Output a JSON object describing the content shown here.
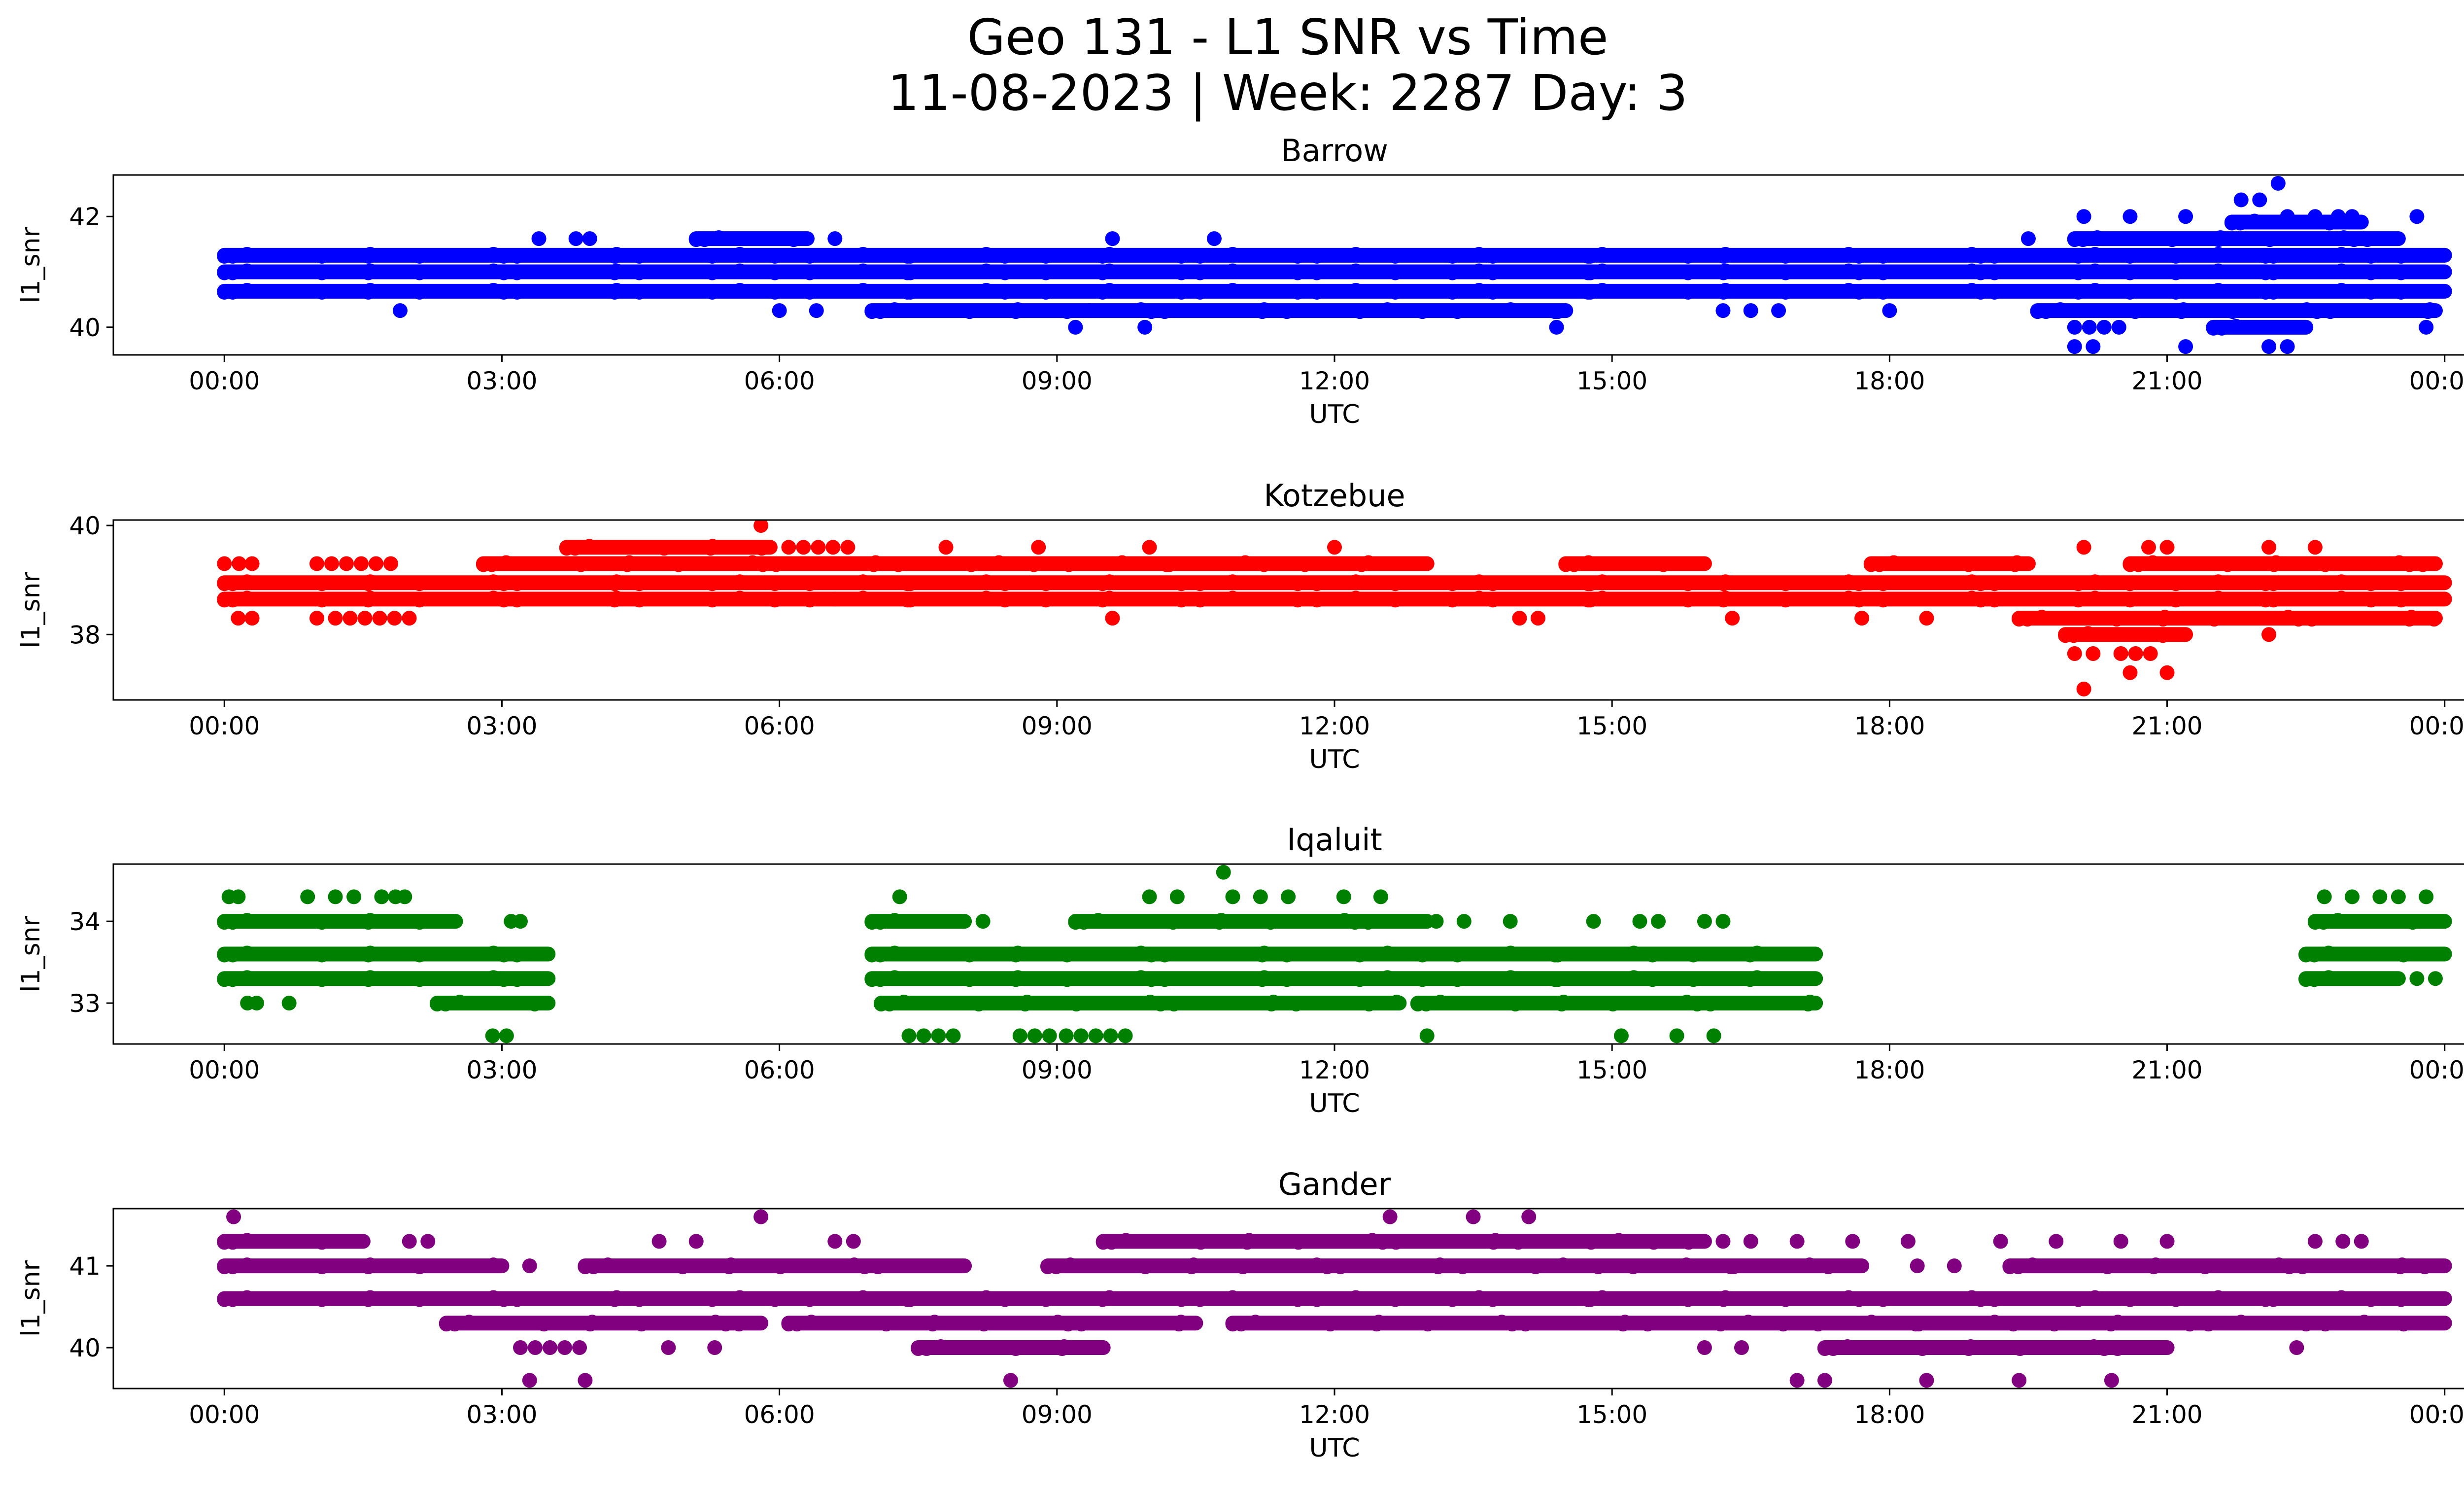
{
  "figure": {
    "title_line1": "Geo 131 - L1 SNR vs Time",
    "title_line2": "11-08-2023 | Week: 2287 Day: 3"
  },
  "chart_data": [
    {
      "type": "scatter",
      "title": "Barrow",
      "xlabel": "UTC",
      "ylabel": "l1_snr",
      "color": "#0000ff",
      "x_ticks": [
        "00:00",
        "03:00",
        "06:00",
        "09:00",
        "12:00",
        "15:00",
        "18:00",
        "21:00",
        "00:00"
      ],
      "xlim_hours": [
        -1.2,
        25.2
      ],
      "y_ticks": [
        40,
        42
      ],
      "ylim": [
        39.5,
        42.75
      ],
      "bands": [
        {
          "y": 40.65,
          "segments": [
            [
              0,
              24
            ]
          ]
        },
        {
          "y": 41.0,
          "segments": [
            [
              0,
              24
            ]
          ]
        },
        {
          "y": 41.3,
          "segments": [
            [
              0,
              24
            ]
          ]
        },
        {
          "y": 41.6,
          "segments": [
            [
              5.1,
              6.3
            ],
            [
              20.0,
              23.5
            ]
          ]
        },
        {
          "y": 41.9,
          "segments": [
            [
              21.7,
              23.1
            ]
          ]
        },
        {
          "y": 40.3,
          "segments": [
            [
              7.0,
              14.5
            ],
            [
              19.6,
              23.9
            ]
          ]
        },
        {
          "y": 40.0,
          "segments": [
            [
              20.0,
              20.6
            ],
            [
              21.5,
              22.5
            ]
          ]
        }
      ],
      "points": [
        {
          "x": 1.9,
          "y": 40.3
        },
        {
          "x": 3.4,
          "y": 41.6
        },
        {
          "x": 3.8,
          "y": 41.6
        },
        {
          "x": 3.95,
          "y": 41.6
        },
        {
          "x": 6.0,
          "y": 40.3
        },
        {
          "x": 6.4,
          "y": 40.3
        },
        {
          "x": 6.6,
          "y": 41.6
        },
        {
          "x": 8.6,
          "y": 40.3
        },
        {
          "x": 9.2,
          "y": 40.0
        },
        {
          "x": 9.35,
          "y": 40.3
        },
        {
          "x": 9.6,
          "y": 41.6
        },
        {
          "x": 9.95,
          "y": 40.0
        },
        {
          "x": 10.7,
          "y": 41.6
        },
        {
          "x": 14.4,
          "y": 40.0
        },
        {
          "x": 16.2,
          "y": 40.3
        },
        {
          "x": 16.5,
          "y": 40.3
        },
        {
          "x": 16.8,
          "y": 40.3
        },
        {
          "x": 18.0,
          "y": 40.3
        },
        {
          "x": 19.5,
          "y": 41.6
        },
        {
          "x": 20.1,
          "y": 42.0
        },
        {
          "x": 20.6,
          "y": 42.0
        },
        {
          "x": 21.2,
          "y": 42.0
        },
        {
          "x": 21.8,
          "y": 42.3
        },
        {
          "x": 22.0,
          "y": 42.3
        },
        {
          "x": 22.2,
          "y": 42.6
        },
        {
          "x": 22.3,
          "y": 42.0
        },
        {
          "x": 22.6,
          "y": 42.0
        },
        {
          "x": 22.85,
          "y": 42.0
        },
        {
          "x": 23.0,
          "y": 42.0
        },
        {
          "x": 23.7,
          "y": 42.0
        },
        {
          "x": 23.8,
          "y": 40.0
        },
        {
          "x": 20.0,
          "y": 39.65
        },
        {
          "x": 20.2,
          "y": 39.65
        },
        {
          "x": 21.2,
          "y": 39.65
        },
        {
          "x": 22.1,
          "y": 39.65
        },
        {
          "x": 22.3,
          "y": 39.65
        }
      ]
    },
    {
      "type": "scatter",
      "title": "Kotzebue",
      "xlabel": "UTC",
      "ylabel": "l1_snr",
      "color": "#ff0000",
      "x_ticks": [
        "00:00",
        "03:00",
        "06:00",
        "09:00",
        "12:00",
        "15:00",
        "18:00",
        "21:00",
        "00:00"
      ],
      "xlim_hours": [
        -1.2,
        25.2
      ],
      "y_ticks": [
        38,
        40
      ],
      "ylim": [
        36.8,
        40.1
      ],
      "bands": [
        {
          "y": 38.65,
          "segments": [
            [
              0,
              24
            ]
          ]
        },
        {
          "y": 38.95,
          "segments": [
            [
              0,
              24
            ]
          ]
        },
        {
          "y": 39.3,
          "segments": [
            [
              0,
              0.2
            ],
            [
              1.0,
              1.9
            ],
            [
              2.8,
              13.0
            ],
            [
              14.5,
              16.0
            ],
            [
              17.8,
              19.5
            ],
            [
              20.6,
              23.9
            ]
          ]
        },
        {
          "y": 39.6,
          "segments": [
            [
              3.7,
              5.9
            ],
            [
              6.1,
              6.8
            ]
          ]
        },
        {
          "y": 38.3,
          "segments": [
            [
              1.2,
              2.0
            ],
            [
              19.4,
              23.9
            ]
          ]
        },
        {
          "y": 38.0,
          "segments": [
            [
              19.9,
              21.2
            ]
          ]
        },
        {
          "y": 37.65,
          "segments": [
            [
              20.5,
              20.9
            ]
          ]
        }
      ],
      "points": [
        {
          "x": 0.3,
          "y": 39.3
        },
        {
          "x": 0.15,
          "y": 38.3
        },
        {
          "x": 0.3,
          "y": 38.3
        },
        {
          "x": 1.0,
          "y": 38.3
        },
        {
          "x": 5.8,
          "y": 40.0
        },
        {
          "x": 6.6,
          "y": 38.65
        },
        {
          "x": 7.8,
          "y": 39.6
        },
        {
          "x": 8.8,
          "y": 39.6
        },
        {
          "x": 9.6,
          "y": 38.3
        },
        {
          "x": 10.0,
          "y": 39.6
        },
        {
          "x": 12.0,
          "y": 39.6
        },
        {
          "x": 14.0,
          "y": 38.3
        },
        {
          "x": 14.2,
          "y": 38.3
        },
        {
          "x": 16.3,
          "y": 38.3
        },
        {
          "x": 17.7,
          "y": 38.3
        },
        {
          "x": 18.4,
          "y": 38.3
        },
        {
          "x": 20.1,
          "y": 39.6
        },
        {
          "x": 20.8,
          "y": 39.6
        },
        {
          "x": 21.0,
          "y": 39.6
        },
        {
          "x": 22.1,
          "y": 39.6
        },
        {
          "x": 22.6,
          "y": 39.6
        },
        {
          "x": 20.0,
          "y": 37.65
        },
        {
          "x": 20.2,
          "y": 37.65
        },
        {
          "x": 20.6,
          "y": 37.3
        },
        {
          "x": 21.0,
          "y": 37.3
        },
        {
          "x": 20.1,
          "y": 37.0
        },
        {
          "x": 22.1,
          "y": 38.0
        }
      ]
    },
    {
      "type": "scatter",
      "title": "Iqaluit",
      "xlabel": "UTC",
      "ylabel": "l1_snr",
      "color": "#008000",
      "x_ticks": [
        "00:00",
        "03:00",
        "06:00",
        "09:00",
        "12:00",
        "15:00",
        "18:00",
        "21:00",
        "00:00"
      ],
      "xlim_hours": [
        -1.2,
        25.2
      ],
      "y_ticks": [
        33,
        34
      ],
      "ylim": [
        32.5,
        34.7
      ],
      "bands": [
        {
          "y": 34.0,
          "segments": [
            [
              0,
              2.5
            ],
            [
              7.0,
              8.0
            ],
            [
              9.2,
              13.0
            ],
            [
              22.6,
              24
            ]
          ]
        },
        {
          "y": 33.6,
          "segments": [
            [
              0,
              3.5
            ],
            [
              7.0,
              17.2
            ],
            [
              22.5,
              24
            ]
          ]
        },
        {
          "y": 33.3,
          "segments": [
            [
              0,
              3.5
            ],
            [
              7.0,
              17.2
            ],
            [
              22.5,
              23.5
            ]
          ]
        },
        {
          "y": 33.0,
          "segments": [
            [
              2.3,
              3.5
            ],
            [
              7.1,
              12.7
            ],
            [
              12.9,
              17.2
            ]
          ]
        },
        {
          "y": 32.6,
          "segments": [
            [
              7.4,
              8.0
            ],
            [
              8.6,
              9.0
            ],
            [
              9.1,
              9.8
            ]
          ]
        }
      ],
      "points": [
        {
          "x": 0.05,
          "y": 34.3
        },
        {
          "x": 0.15,
          "y": 34.3
        },
        {
          "x": 0.9,
          "y": 34.3
        },
        {
          "x": 1.2,
          "y": 34.3
        },
        {
          "x": 1.4,
          "y": 34.3
        },
        {
          "x": 1.7,
          "y": 34.3
        },
        {
          "x": 1.85,
          "y": 34.3
        },
        {
          "x": 1.95,
          "y": 34.3
        },
        {
          "x": 0.7,
          "y": 33.0
        },
        {
          "x": 0.25,
          "y": 33.0
        },
        {
          "x": 0.35,
          "y": 33.0
        },
        {
          "x": 2.9,
          "y": 32.6
        },
        {
          "x": 3.05,
          "y": 32.6
        },
        {
          "x": 3.1,
          "y": 34.0
        },
        {
          "x": 3.2,
          "y": 34.0
        },
        {
          "x": 7.3,
          "y": 34.3
        },
        {
          "x": 8.2,
          "y": 34.0
        },
        {
          "x": 10.0,
          "y": 34.3
        },
        {
          "x": 10.3,
          "y": 34.3
        },
        {
          "x": 10.8,
          "y": 34.6
        },
        {
          "x": 10.9,
          "y": 34.3
        },
        {
          "x": 11.2,
          "y": 34.3
        },
        {
          "x": 11.5,
          "y": 34.3
        },
        {
          "x": 12.1,
          "y": 34.3
        },
        {
          "x": 12.5,
          "y": 34.3
        },
        {
          "x": 13.1,
          "y": 34.0
        },
        {
          "x": 13.4,
          "y": 34.0
        },
        {
          "x": 13.9,
          "y": 34.0
        },
        {
          "x": 14.8,
          "y": 34.0
        },
        {
          "x": 15.3,
          "y": 34.0
        },
        {
          "x": 15.5,
          "y": 34.0
        },
        {
          "x": 16.0,
          "y": 34.0
        },
        {
          "x": 16.2,
          "y": 34.0
        },
        {
          "x": 13.0,
          "y": 32.6
        },
        {
          "x": 15.1,
          "y": 32.6
        },
        {
          "x": 15.7,
          "y": 32.6
        },
        {
          "x": 16.1,
          "y": 32.6
        },
        {
          "x": 22.7,
          "y": 34.3
        },
        {
          "x": 23.0,
          "y": 34.3
        },
        {
          "x": 23.3,
          "y": 34.3
        },
        {
          "x": 23.5,
          "y": 34.3
        },
        {
          "x": 23.8,
          "y": 34.3
        },
        {
          "x": 23.7,
          "y": 33.3
        },
        {
          "x": 23.9,
          "y": 33.3
        }
      ]
    },
    {
      "type": "scatter",
      "title": "Gander",
      "xlabel": "UTC",
      "ylabel": "l1_snr",
      "color": "#800080",
      "x_ticks": [
        "00:00",
        "03:00",
        "06:00",
        "09:00",
        "12:00",
        "15:00",
        "18:00",
        "21:00",
        "00:00"
      ],
      "xlim_hours": [
        -1.2,
        25.2
      ],
      "y_ticks": [
        40,
        41
      ],
      "ylim": [
        39.5,
        41.7
      ],
      "bands": [
        {
          "y": 41.3,
          "segments": [
            [
              0,
              1.5
            ],
            [
              9.5,
              16.0
            ]
          ]
        },
        {
          "y": 41.0,
          "segments": [
            [
              0,
              3.0
            ],
            [
              3.9,
              8.0
            ],
            [
              8.9,
              17.7
            ],
            [
              19.3,
              24
            ]
          ]
        },
        {
          "y": 40.6,
          "segments": [
            [
              0,
              24
            ]
          ]
        },
        {
          "y": 40.3,
          "segments": [
            [
              2.4,
              5.8
            ],
            [
              6.1,
              10.5
            ],
            [
              10.9,
              24
            ]
          ]
        },
        {
          "y": 40.0,
          "segments": [
            [
              3.2,
              3.9
            ],
            [
              7.5,
              9.5
            ],
            [
              17.3,
              21.0
            ]
          ]
        }
      ],
      "points": [
        {
          "x": 0.1,
          "y": 41.6
        },
        {
          "x": 5.8,
          "y": 41.6
        },
        {
          "x": 12.6,
          "y": 41.6
        },
        {
          "x": 13.5,
          "y": 41.6
        },
        {
          "x": 14.1,
          "y": 41.6
        },
        {
          "x": 3.3,
          "y": 39.6
        },
        {
          "x": 3.9,
          "y": 39.6
        },
        {
          "x": 8.5,
          "y": 39.6
        },
        {
          "x": 17.0,
          "y": 39.6
        },
        {
          "x": 17.3,
          "y": 39.6
        },
        {
          "x": 18.4,
          "y": 39.6
        },
        {
          "x": 19.4,
          "y": 39.6
        },
        {
          "x": 20.4,
          "y": 39.6
        },
        {
          "x": 3.3,
          "y": 41.0
        },
        {
          "x": 4.8,
          "y": 40.0
        },
        {
          "x": 5.3,
          "y": 40.0
        },
        {
          "x": 4.7,
          "y": 41.3
        },
        {
          "x": 5.1,
          "y": 41.3
        },
        {
          "x": 6.6,
          "y": 41.3
        },
        {
          "x": 6.8,
          "y": 41.3
        },
        {
          "x": 2.0,
          "y": 41.3
        },
        {
          "x": 2.2,
          "y": 41.3
        },
        {
          "x": 16.2,
          "y": 41.3
        },
        {
          "x": 16.5,
          "y": 41.3
        },
        {
          "x": 17.0,
          "y": 41.3
        },
        {
          "x": 17.6,
          "y": 41.3
        },
        {
          "x": 18.2,
          "y": 41.3
        },
        {
          "x": 19.2,
          "y": 41.3
        },
        {
          "x": 19.8,
          "y": 41.3
        },
        {
          "x": 20.5,
          "y": 41.3
        },
        {
          "x": 21.0,
          "y": 41.3
        },
        {
          "x": 22.6,
          "y": 41.3
        },
        {
          "x": 22.9,
          "y": 41.3
        },
        {
          "x": 23.1,
          "y": 41.3
        },
        {
          "x": 16.0,
          "y": 40.0
        },
        {
          "x": 16.4,
          "y": 40.0
        },
        {
          "x": 22.4,
          "y": 40.0
        },
        {
          "x": 18.3,
          "y": 41.0
        },
        {
          "x": 18.7,
          "y": 41.0
        }
      ]
    }
  ]
}
